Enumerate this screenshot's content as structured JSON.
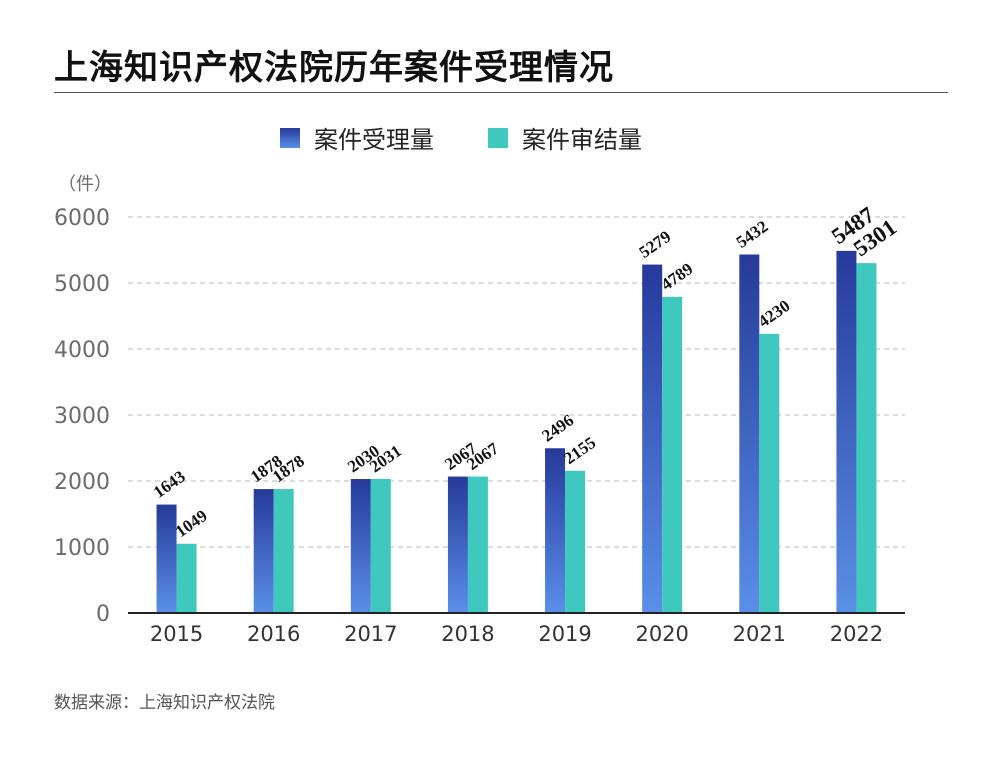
{
  "title": "上海知识产权法院历年案件受理情况",
  "source": "数据来源：上海知识产权法院",
  "colors": {
    "received_top": "#263a9a",
    "received_bottom": "#5a8fe8",
    "concluded": "#3fc8bd",
    "grid": "#c8c8c8",
    "axis": "#222222",
    "tick": "#6b6b6b"
  },
  "chart_data": {
    "type": "bar",
    "unit_label": "（件）",
    "categories": [
      "2015",
      "2016",
      "2017",
      "2018",
      "2019",
      "2020",
      "2021",
      "2022"
    ],
    "series": [
      {
        "name": "案件受理量",
        "values": [
          1643,
          1878,
          2030,
          2067,
          2496,
          5279,
          5432,
          5487
        ]
      },
      {
        "name": "案件审结量",
        "values": [
          1049,
          1878,
          2031,
          2067,
          2155,
          4789,
          4230,
          5301
        ]
      }
    ],
    "ylim": [
      0,
      6000
    ],
    "yticks": [
      0,
      1000,
      2000,
      3000,
      4000,
      5000,
      6000
    ],
    "grid": true,
    "legend": "top-center"
  }
}
